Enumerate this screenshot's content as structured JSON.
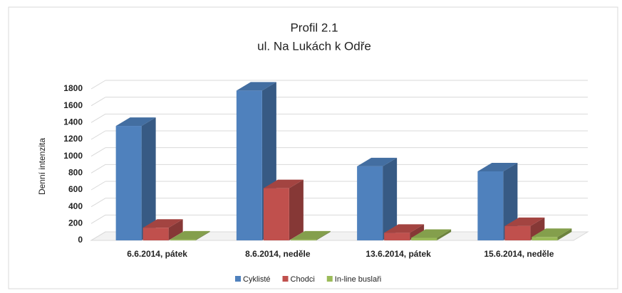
{
  "chart_data": {
    "type": "bar3d",
    "title": "Profil 2.1",
    "subtitle": "ul. Na Lukách k Odře",
    "y_label": "Denní intenzita",
    "categories": [
      "6.6.2014, pátek",
      "8.6.2014, neděle",
      "13.6.2014, pátek",
      "15.6.2014, neděle"
    ],
    "series": [
      {
        "name": "Cyklisté",
        "color": "#4f81bd",
        "values": [
          1360,
          1780,
          880,
          820
        ]
      },
      {
        "name": "Chodci",
        "color": "#c0504d",
        "values": [
          150,
          620,
          90,
          170
        ]
      },
      {
        "name": "In-line buslaři",
        "color": "#9bbb59",
        "values": [
          10,
          10,
          30,
          40
        ]
      }
    ],
    "ylim": [
      0,
      1800
    ],
    "yticks": [
      0,
      200,
      400,
      600,
      800,
      1000,
      1200,
      1400,
      1600,
      1800
    ],
    "grid": true
  }
}
